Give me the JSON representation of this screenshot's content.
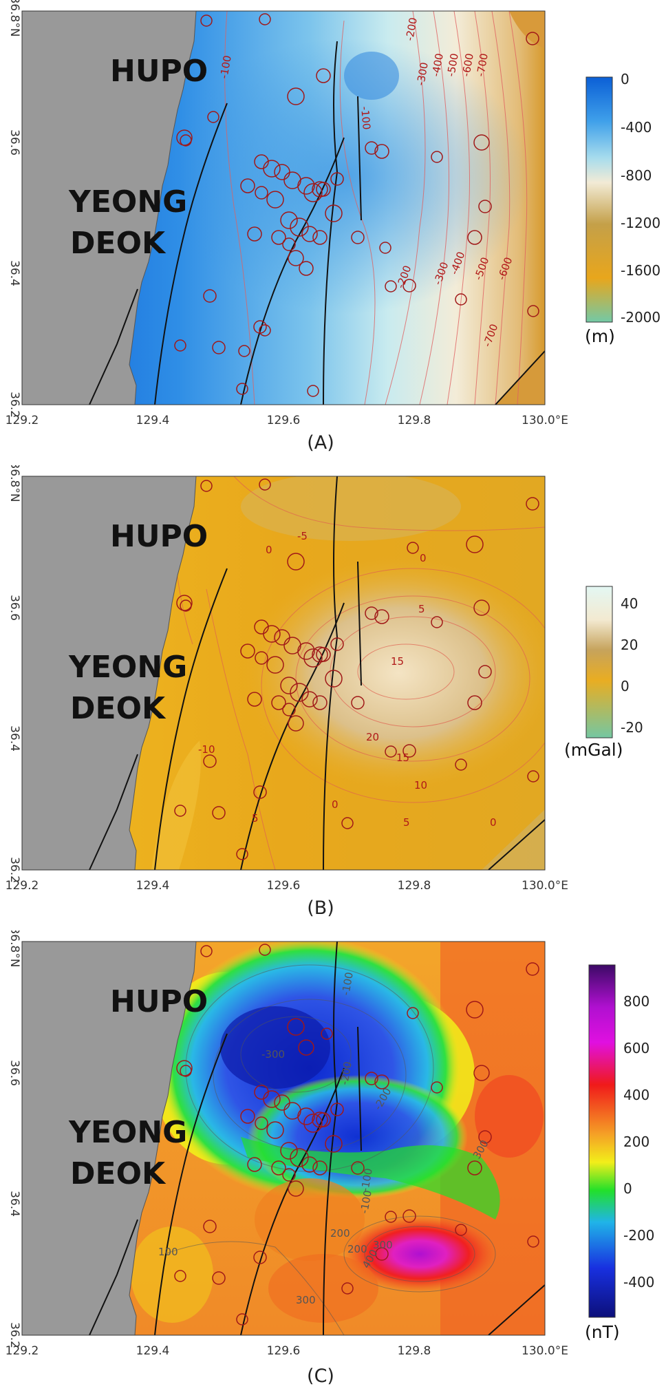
{
  "x_ticks": [
    "129.2",
    "129.4",
    "129.6",
    "129.8",
    "130.0°E"
  ],
  "y_ticks": [
    "36.2",
    "36.4",
    "36.6",
    "36.8°N"
  ],
  "place_labels": {
    "north": "HUPO",
    "south_line1": "YEONG",
    "south_line2": "DEOK"
  },
  "panels": [
    {
      "caption": "(A)",
      "unit": "(m)",
      "colorbar_ticks": [
        "0",
        "-400",
        "-800",
        "-1200",
        "-1600",
        "-2000"
      ],
      "colors": [
        "#0b5fd6",
        "#3fa0ea",
        "#a7dced",
        "#f2ebd6",
        "#c4a049",
        "#e8a61c",
        "#73c9a6"
      ],
      "contour_labels": [
        "-100",
        "-100",
        "-300",
        "-400",
        "-500",
        "-600",
        "-700",
        "-200",
        "-300",
        "-400",
        "-500",
        "-600",
        "-700",
        "-200"
      ]
    },
    {
      "caption": "(B)",
      "unit": "(mGal)",
      "colorbar_ticks": [
        "40",
        "20",
        "0",
        "-20"
      ],
      "colors": [
        "#e3f7f3",
        "#f3ead1",
        "#c6a35c",
        "#e9ad22",
        "#74c7a2"
      ],
      "contour_labels": [
        "0",
        "-5",
        "0",
        "5",
        "15",
        "20",
        "15",
        "10",
        "5",
        "0",
        "-10",
        "5",
        "0"
      ]
    },
    {
      "caption": "(C)",
      "unit": "(nT)",
      "colorbar_ticks": [
        "800",
        "600",
        "400",
        "200",
        "0",
        "-200",
        "-400"
      ],
      "colors": [
        "#3c0a66",
        "#e010e0",
        "#f01a1a",
        "#f5a026",
        "#f2ee1a",
        "#22e02a",
        "#20b4e8",
        "#1830e0",
        "#0c0f7a"
      ],
      "contour_labels": [
        "-300",
        "-200",
        "-200",
        "-100",
        "-100",
        "100",
        "200",
        "300",
        "400",
        "300",
        "200",
        "300",
        "-100"
      ]
    }
  ]
}
